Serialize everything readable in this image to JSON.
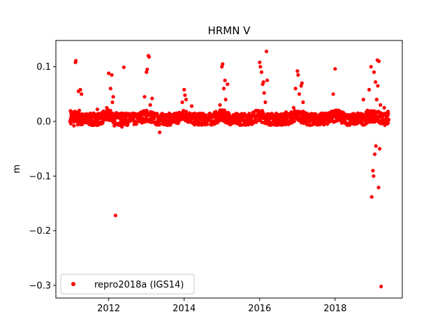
{
  "chart_data": {
    "type": "scatter",
    "title": "HRMN V",
    "xlabel": "",
    "ylabel": "m",
    "xlim": [
      2010.6,
      2019.78
    ],
    "ylim": [
      -0.323,
      0.148
    ],
    "x_ticks": [
      2012,
      2014,
      2016,
      2018
    ],
    "x_tick_labels": [
      "2012",
      "2014",
      "2016",
      "2018"
    ],
    "y_ticks": [
      -0.3,
      -0.2,
      -0.1,
      0.0,
      0.1
    ],
    "y_tick_labels": [
      "−0.3",
      "−0.2",
      "−0.1",
      "0.0",
      "0.1"
    ],
    "legend": {
      "position": "lower-left",
      "entries": [
        "repro2018a (IGS14)"
      ]
    },
    "grid": false,
    "colors": {
      "series": "#ff0000"
    },
    "series": [
      {
        "name": "repro2018a (IGS14)",
        "marker": "circle",
        "points": [
          [
            2010.98,
            0.001
          ],
          [
            2011.0,
            -0.004
          ],
          [
            2011.02,
            0.006
          ],
          [
            2011.05,
            0.002
          ],
          [
            2011.08,
            -0.008
          ],
          [
            2011.1,
            0.011
          ],
          [
            2011.12,
            0.108
          ],
          [
            2011.13,
            0.111
          ],
          [
            2011.15,
            0.004
          ],
          [
            2011.18,
            -0.006
          ],
          [
            2011.2,
            0.055
          ],
          [
            2011.22,
            0.02
          ],
          [
            2011.25,
            0.058
          ],
          [
            2011.28,
            0.05
          ],
          [
            2011.3,
            -0.005
          ],
          [
            2011.35,
            0.008
          ],
          [
            2011.4,
            -0.002
          ],
          [
            2011.45,
            0.012
          ],
          [
            2011.5,
            0.005
          ],
          [
            2011.55,
            -0.007
          ],
          [
            2011.6,
            0.015
          ],
          [
            2011.65,
            0.003
          ],
          [
            2011.7,
            0.022
          ],
          [
            2011.75,
            -0.004
          ],
          [
            2011.8,
            0.01
          ],
          [
            2011.85,
            0.002
          ],
          [
            2011.9,
            0.018
          ],
          [
            2011.95,
            0.025
          ],
          [
            2012.0,
            0.088
          ],
          [
            2012.05,
            0.06
          ],
          [
            2012.08,
            0.085
          ],
          [
            2012.1,
            0.035
          ],
          [
            2012.12,
            0.045
          ],
          [
            2012.15,
            -0.008
          ],
          [
            2012.18,
            -0.172
          ],
          [
            2012.2,
            0.01
          ],
          [
            2012.25,
            -0.004
          ],
          [
            2012.3,
            0.006
          ],
          [
            2012.35,
            -0.01
          ],
          [
            2012.4,
            0.099
          ],
          [
            2012.45,
            0.012
          ],
          [
            2012.5,
            -0.006
          ],
          [
            2012.6,
            0.004
          ],
          [
            2012.7,
            0.01
          ],
          [
            2012.8,
            0.002
          ],
          [
            2012.9,
            0.014
          ],
          [
            2012.95,
            0.045
          ],
          [
            2013.0,
            0.09
          ],
          [
            2013.02,
            0.095
          ],
          [
            2013.05,
            0.12
          ],
          [
            2013.07,
            0.118
          ],
          [
            2013.1,
            0.03
          ],
          [
            2013.15,
            0.042
          ],
          [
            2013.2,
            0.005
          ],
          [
            2013.3,
            0.008
          ],
          [
            2013.35,
            -0.02
          ],
          [
            2013.4,
            0.003
          ],
          [
            2013.5,
            0.012
          ],
          [
            2013.6,
            -0.002
          ],
          [
            2013.7,
            0.007
          ],
          [
            2013.8,
            0.015
          ],
          [
            2013.9,
            0.004
          ],
          [
            2013.95,
            0.035
          ],
          [
            2014.0,
            0.058
          ],
          [
            2014.02,
            0.048
          ],
          [
            2014.05,
            0.04
          ],
          [
            2014.1,
            0.01
          ],
          [
            2014.2,
            0.028
          ],
          [
            2014.3,
            -0.005
          ],
          [
            2014.4,
            0.006
          ],
          [
            2014.5,
            0.012
          ],
          [
            2014.6,
            -0.003
          ],
          [
            2014.7,
            0.008
          ],
          [
            2014.8,
            0.016
          ],
          [
            2014.9,
            0.002
          ],
          [
            2014.95,
            0.03
          ],
          [
            2015.0,
            0.1
          ],
          [
            2015.02,
            0.105
          ],
          [
            2015.05,
            0.06
          ],
          [
            2015.08,
            0.075
          ],
          [
            2015.1,
            0.04
          ],
          [
            2015.15,
            0.068
          ],
          [
            2015.2,
            0.003
          ],
          [
            2015.3,
            0.01
          ],
          [
            2015.4,
            -0.004
          ],
          [
            2015.5,
            0.006
          ],
          [
            2015.6,
            0.014
          ],
          [
            2015.7,
            -0.002
          ],
          [
            2015.8,
            0.011
          ],
          [
            2015.9,
            0.02
          ],
          [
            2016.0,
            0.108
          ],
          [
            2016.02,
            0.1
          ],
          [
            2016.05,
            0.09
          ],
          [
            2016.08,
            0.068
          ],
          [
            2016.1,
            0.072
          ],
          [
            2016.12,
            0.052
          ],
          [
            2016.15,
            0.035
          ],
          [
            2016.18,
            0.128
          ],
          [
            2016.2,
            0.075
          ],
          [
            2016.25,
            0.003
          ],
          [
            2016.3,
            0.008
          ],
          [
            2016.4,
            -0.005
          ],
          [
            2016.5,
            0.012
          ],
          [
            2016.6,
            0.004
          ],
          [
            2016.7,
            0.017
          ],
          [
            2016.8,
            -0.003
          ],
          [
            2016.9,
            0.025
          ],
          [
            2016.95,
            0.06
          ],
          [
            2017.0,
            0.092
          ],
          [
            2017.02,
            0.085
          ],
          [
            2017.05,
            0.05
          ],
          [
            2017.1,
            0.065
          ],
          [
            2017.12,
            0.07
          ],
          [
            2017.15,
            0.035
          ],
          [
            2017.2,
            0.006
          ],
          [
            2017.3,
            0.01
          ],
          [
            2017.4,
            -0.006
          ],
          [
            2017.5,
            0.005
          ],
          [
            2017.6,
            0.013
          ],
          [
            2017.7,
            0.0
          ],
          [
            2017.8,
            0.009
          ],
          [
            2017.9,
            0.018
          ],
          [
            2017.95,
            0.05
          ],
          [
            2018.0,
            0.096
          ],
          [
            2018.02,
            0.012
          ],
          [
            2018.1,
            0.02
          ],
          [
            2018.2,
            0.004
          ],
          [
            2018.3,
            0.011
          ],
          [
            2018.4,
            -0.003
          ],
          [
            2018.5,
            0.007
          ],
          [
            2018.6,
            0.015
          ],
          [
            2018.7,
            0.003
          ],
          [
            2018.75,
            0.04
          ],
          [
            2018.8,
            0.009
          ],
          [
            2018.85,
            0.02
          ],
          [
            2018.9,
            0.058
          ],
          [
            2018.95,
            0.1
          ],
          [
            2018.97,
            -0.138
          ],
          [
            2019.0,
            -0.09
          ],
          [
            2019.02,
            -0.1
          ],
          [
            2019.03,
            0.09
          ],
          [
            2019.05,
            -0.06
          ],
          [
            2019.07,
            0.072
          ],
          [
            2019.08,
            -0.045
          ],
          [
            2019.1,
            0.04
          ],
          [
            2019.12,
            0.112
          ],
          [
            2019.13,
            0.065
          ],
          [
            2019.15,
            -0.121
          ],
          [
            2019.16,
            0.11
          ],
          [
            2019.18,
            -0.05
          ],
          [
            2019.2,
            0.03
          ],
          [
            2019.22,
            -0.302
          ],
          [
            2019.25,
            0.005
          ],
          [
            2019.3,
            0.025
          ],
          [
            2019.35,
            0.01
          ],
          [
            2019.4,
            0.018
          ],
          [
            2019.42,
            0.003
          ]
        ]
      }
    ]
  }
}
